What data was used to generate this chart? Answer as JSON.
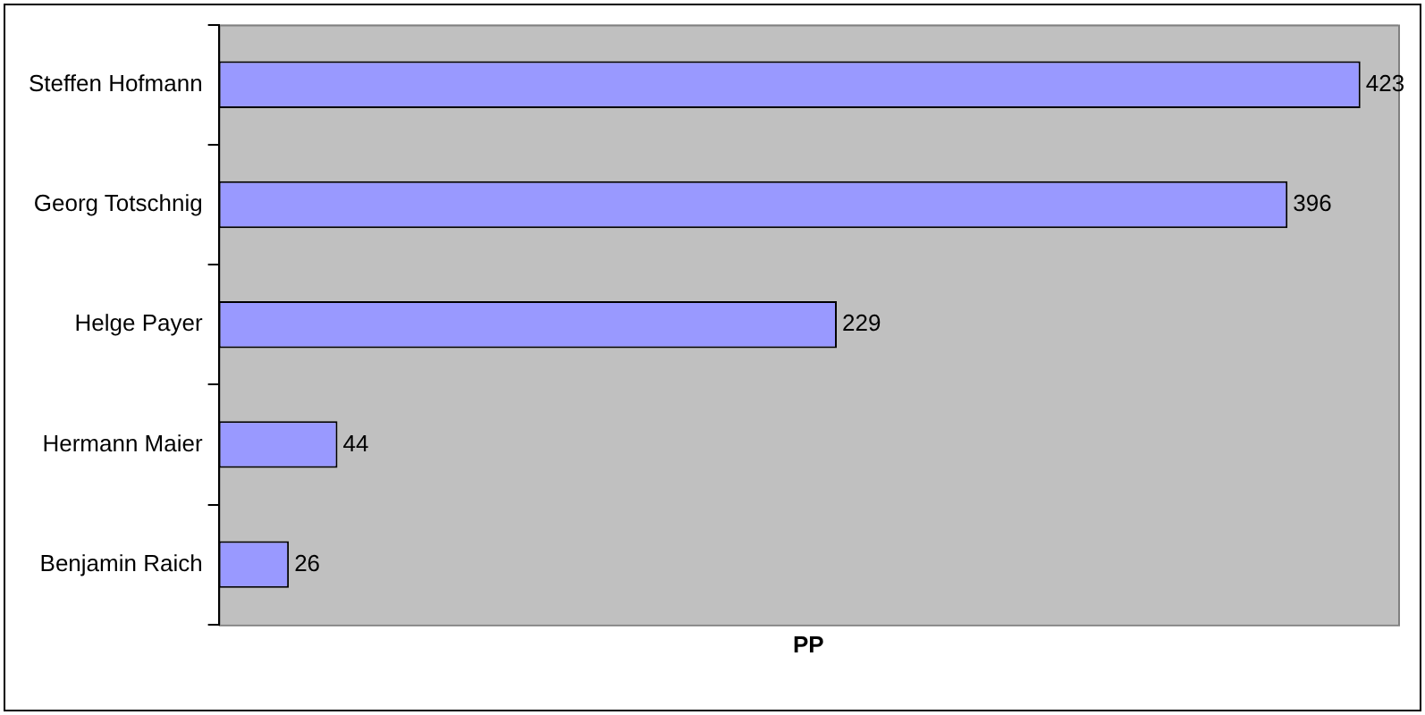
{
  "chart_data": {
    "type": "bar",
    "orientation": "horizontal",
    "xlabel": "PP",
    "categories": [
      "Steffen Hofmann",
      "Georg Totschnig",
      "Helge Payer",
      "Hermann Maier",
      "Benjamin Raich"
    ],
    "values": [
      423,
      396,
      229,
      44,
      26
    ],
    "color": "#9999ff",
    "xlim": [
      0,
      437
    ],
    "data_labels": true,
    "tick_labels": "y",
    "legend": false
  }
}
